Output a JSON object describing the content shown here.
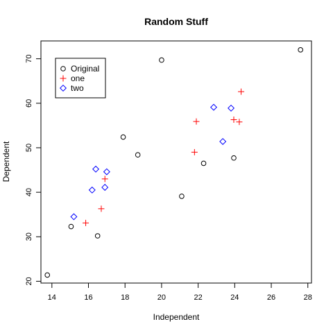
{
  "chart_data": {
    "type": "scatter",
    "title": "Random Stuff",
    "xlabel": "Independent",
    "ylabel": "Dependent",
    "xlim": [
      13.4,
      28.2
    ],
    "ylim": [
      19.6,
      74
    ],
    "xticks": [
      "14",
      "16",
      "18",
      "20",
      "22",
      "24",
      "26",
      "28"
    ],
    "yticks": [
      "20",
      "30",
      "40",
      "50",
      "60",
      "70"
    ],
    "legend_position": "top-left",
    "grid": false,
    "series": [
      {
        "name": "Original",
        "marker": "circle",
        "color": "#000000",
        "points": [
          [
            13.75,
            21.4
          ],
          [
            15.05,
            32.3
          ],
          [
            16.5,
            30.2
          ],
          [
            17.9,
            52.4
          ],
          [
            18.7,
            48.4
          ],
          [
            20.0,
            69.7
          ],
          [
            21.1,
            39.1
          ],
          [
            22.3,
            46.5
          ],
          [
            23.95,
            47.7
          ],
          [
            27.6,
            72.0
          ]
        ]
      },
      {
        "name": "one",
        "marker": "plus",
        "color": "#ff0000",
        "points": [
          [
            15.85,
            33.1
          ],
          [
            16.7,
            36.3
          ],
          [
            16.9,
            43.0
          ],
          [
            21.8,
            49.0
          ],
          [
            21.9,
            55.9
          ],
          [
            23.95,
            56.3
          ],
          [
            24.25,
            55.8
          ],
          [
            24.35,
            62.6
          ]
        ]
      },
      {
        "name": "two",
        "marker": "diamond",
        "color": "#0000ff",
        "points": [
          [
            15.2,
            34.5
          ],
          [
            16.2,
            40.5
          ],
          [
            16.4,
            45.2
          ],
          [
            16.9,
            41.1
          ],
          [
            17.0,
            44.6
          ],
          [
            22.85,
            59.1
          ],
          [
            23.35,
            51.4
          ],
          [
            23.8,
            58.9
          ]
        ]
      }
    ]
  }
}
